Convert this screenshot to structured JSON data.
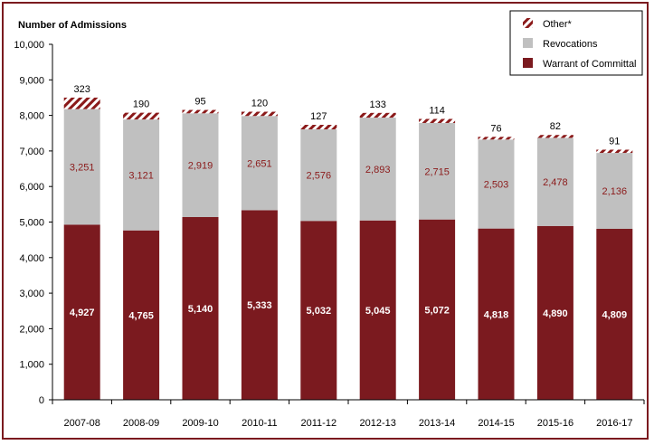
{
  "chart_data": {
    "type": "bar",
    "stacked": true,
    "ylabel": "Number of Admissions",
    "ylim": [
      0,
      10000
    ],
    "yticks": [
      "0",
      "1,000",
      "2,000",
      "3,000",
      "4,000",
      "5,000",
      "6,000",
      "7,000",
      "8,000",
      "9,000",
      "10,000"
    ],
    "categories": [
      "2007-08",
      "2008-09",
      "2009-10",
      "2010-11",
      "2011-12",
      "2012-13",
      "2013-14",
      "2014-15",
      "2015-16",
      "2016-17"
    ],
    "series": [
      {
        "name": "Warrant of Committal",
        "color": "#7b1a1f",
        "values": [
          4927,
          4765,
          5140,
          5333,
          5032,
          5045,
          5072,
          4818,
          4890,
          4809
        ],
        "labels": [
          "4,927",
          "4,765",
          "5,140",
          "5,333",
          "5,032",
          "5,045",
          "5,072",
          "4,818",
          "4,890",
          "4,809"
        ]
      },
      {
        "name": "Revocations",
        "color": "#c0c0c0",
        "values": [
          3251,
          3121,
          2919,
          2651,
          2576,
          2893,
          2715,
          2503,
          2478,
          2136
        ],
        "labels": [
          "3,251",
          "3,121",
          "2,919",
          "2,651",
          "2,576",
          "2,893",
          "2,715",
          "2,503",
          "2,478",
          "2,136"
        ]
      },
      {
        "name": "Other*",
        "color": "#8b1a1a",
        "pattern": "diagonal-hatch",
        "values": [
          323,
          190,
          95,
          120,
          127,
          133,
          114,
          76,
          82,
          91
        ],
        "labels": [
          "323",
          "190",
          "95",
          "120",
          "127",
          "133",
          "114",
          "76",
          "82",
          "91"
        ]
      }
    ],
    "legend_position": "top-right",
    "legend_order": [
      "Other*",
      "Revocations",
      "Warrant of Committal"
    ]
  }
}
